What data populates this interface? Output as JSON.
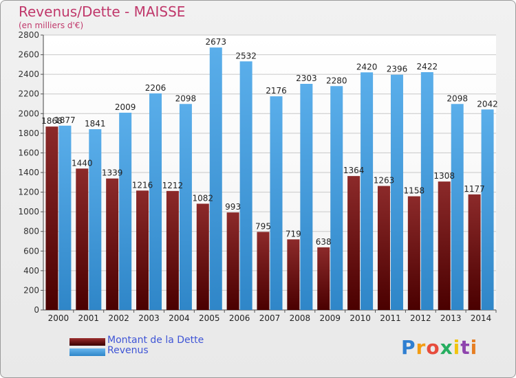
{
  "header": {
    "title": "Revenus/Dette - MAISSE",
    "subtitle": "(en milliers d'€)"
  },
  "chart_data": {
    "type": "bar",
    "categories": [
      "2000",
      "2001",
      "2002",
      "2003",
      "2004",
      "2005",
      "2006",
      "2007",
      "2008",
      "2009",
      "2010",
      "2011",
      "2012",
      "2013",
      "2014"
    ],
    "series": [
      {
        "name": "Montant de la Dette",
        "color": "#7a1f1f",
        "values": [
          1868,
          1440,
          1339,
          1216,
          1212,
          1082,
          993,
          795,
          719,
          638,
          1364,
          1263,
          1158,
          1308,
          1177
        ],
        "labels": [
          "1868",
          "1440",
          "1339",
          "1216",
          "1212",
          "1082",
          "993",
          "795",
          "719",
          "638",
          "1364",
          "1263",
          "1158",
          "1308",
          "1177"
        ]
      },
      {
        "name": "Revenus",
        "color": "#4ca3e3",
        "values": [
          1877,
          1841,
          2009,
          2206,
          2098,
          2673,
          2532,
          2176,
          2303,
          2280,
          2420,
          2396,
          2422,
          2098,
          2042
        ],
        "labels": [
          "1877",
          "1841",
          "2009",
          "2206",
          "2098",
          "2673",
          "2532",
          "2176",
          "2303",
          "2280",
          "2420",
          "2396",
          "2422",
          "2098",
          "2042"
        ]
      }
    ],
    "yticks": [
      "0",
      "200",
      "400",
      "600",
      "800",
      "1000",
      "1200",
      "1400",
      "1600",
      "1800",
      "2000",
      "2200",
      "2400",
      "2600",
      "2800"
    ],
    "ylim": [
      0,
      2800
    ],
    "grid": true,
    "legend_position": "bottom-left"
  },
  "legend": {
    "debt_label": "Montant de la Dette",
    "revenue_label": "Revenus"
  },
  "logo": {
    "letters": [
      "P",
      "r",
      "o",
      "x",
      "i",
      "t",
      "i"
    ],
    "colors": [
      "#2f7fd1",
      "#f39c12",
      "#e74c3c",
      "#27ae60",
      "#f1c40f",
      "#8e44ad",
      "#e67e22"
    ]
  }
}
